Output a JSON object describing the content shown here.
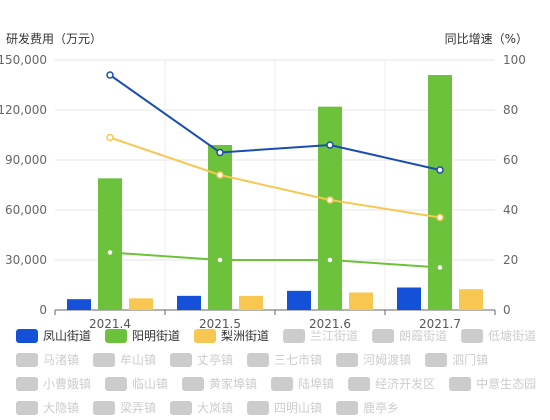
{
  "chart_data": {
    "type": "bar",
    "left_axis_title": "研发费用（万元）",
    "right_axis_title": "同比增速（%）",
    "categories": [
      "2021.4",
      "2021.5",
      "2021.6",
      "2021.7"
    ],
    "y_left": {
      "min": 0,
      "max": 150000,
      "ticks": [
        "0",
        "30,000",
        "60,000",
        "90,000",
        "120,000",
        "150,000"
      ],
      "tick_values": [
        0,
        30000,
        60000,
        90000,
        120000,
        150000
      ]
    },
    "y_right": {
      "min": 0,
      "max": 100,
      "ticks": [
        "0",
        "20",
        "40",
        "60",
        "80",
        "100"
      ],
      "tick_values": [
        0,
        20,
        40,
        60,
        80,
        100
      ]
    },
    "bar_series": [
      {
        "name": "凤山街道",
        "color": "#1550d8",
        "values": [
          6500,
          8500,
          11500,
          13500
        ]
      },
      {
        "name": "阳明街道",
        "color": "#6cc23a",
        "values": [
          79000,
          99000,
          122000,
          141000
        ]
      },
      {
        "name": "梨洲街道",
        "color": "#f7c752",
        "values": [
          7000,
          8500,
          10500,
          12500
        ]
      }
    ],
    "line_series": [
      {
        "name": "凤山街道",
        "color": "#1a4db3",
        "values": [
          94,
          63,
          66,
          56
        ]
      },
      {
        "name": "阳明街道",
        "color": "#6cc23a",
        "values": [
          23,
          20,
          20,
          17
        ]
      },
      {
        "name": "梨洲街道",
        "color": "#f7c752",
        "values": [
          69,
          54,
          44,
          37
        ]
      }
    ],
    "legend": {
      "placement": "bottom",
      "active": [
        {
          "name": "凤山街道",
          "color": "#1550d8"
        },
        {
          "name": "阳明街道",
          "color": "#6cc23a"
        },
        {
          "name": "梨洲街道",
          "color": "#f7c752"
        }
      ],
      "inactive_color": "#cccccc",
      "inactive": [
        "兰江街道",
        "朗霞街道",
        "低塘街道",
        "马渚镇",
        "牟山镇",
        "丈亭镇",
        "三七市镇",
        "河姆渡镇",
        "泗门镇",
        "小曹娥镇",
        "临山镇",
        "黄家埠镇",
        "陆埠镇",
        "经济开发区",
        "中意生态园",
        "大隐镇",
        "梁弄镇",
        "大岚镇",
        "四明山镇",
        "鹿亭乡"
      ]
    }
  }
}
